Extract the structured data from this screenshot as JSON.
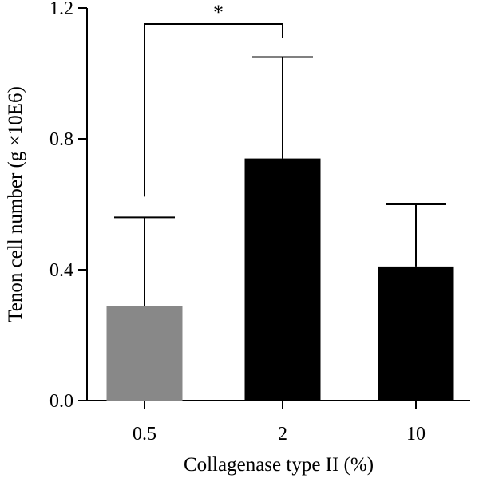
{
  "chart_data": {
    "type": "bar",
    "title": "",
    "xlabel": "Collagenase type II (%)",
    "ylabel": "Tenon cell number (g ×10E6)",
    "categories": [
      "0.5",
      "2",
      "10"
    ],
    "values": [
      0.29,
      0.74,
      0.41
    ],
    "errors": [
      0.27,
      0.31,
      0.19
    ],
    "bar_colors": [
      "#888888",
      "#000000",
      "#000000"
    ],
    "ylim": [
      0,
      1.2
    ],
    "yticks": [
      0.0,
      0.4,
      0.8,
      1.2
    ],
    "ytick_labels": [
      "0.0",
      "0.4",
      "0.8",
      "1.2"
    ],
    "grid": false,
    "legend": "none",
    "significance": [
      {
        "from": 0,
        "to": 1,
        "label": "*"
      }
    ]
  }
}
